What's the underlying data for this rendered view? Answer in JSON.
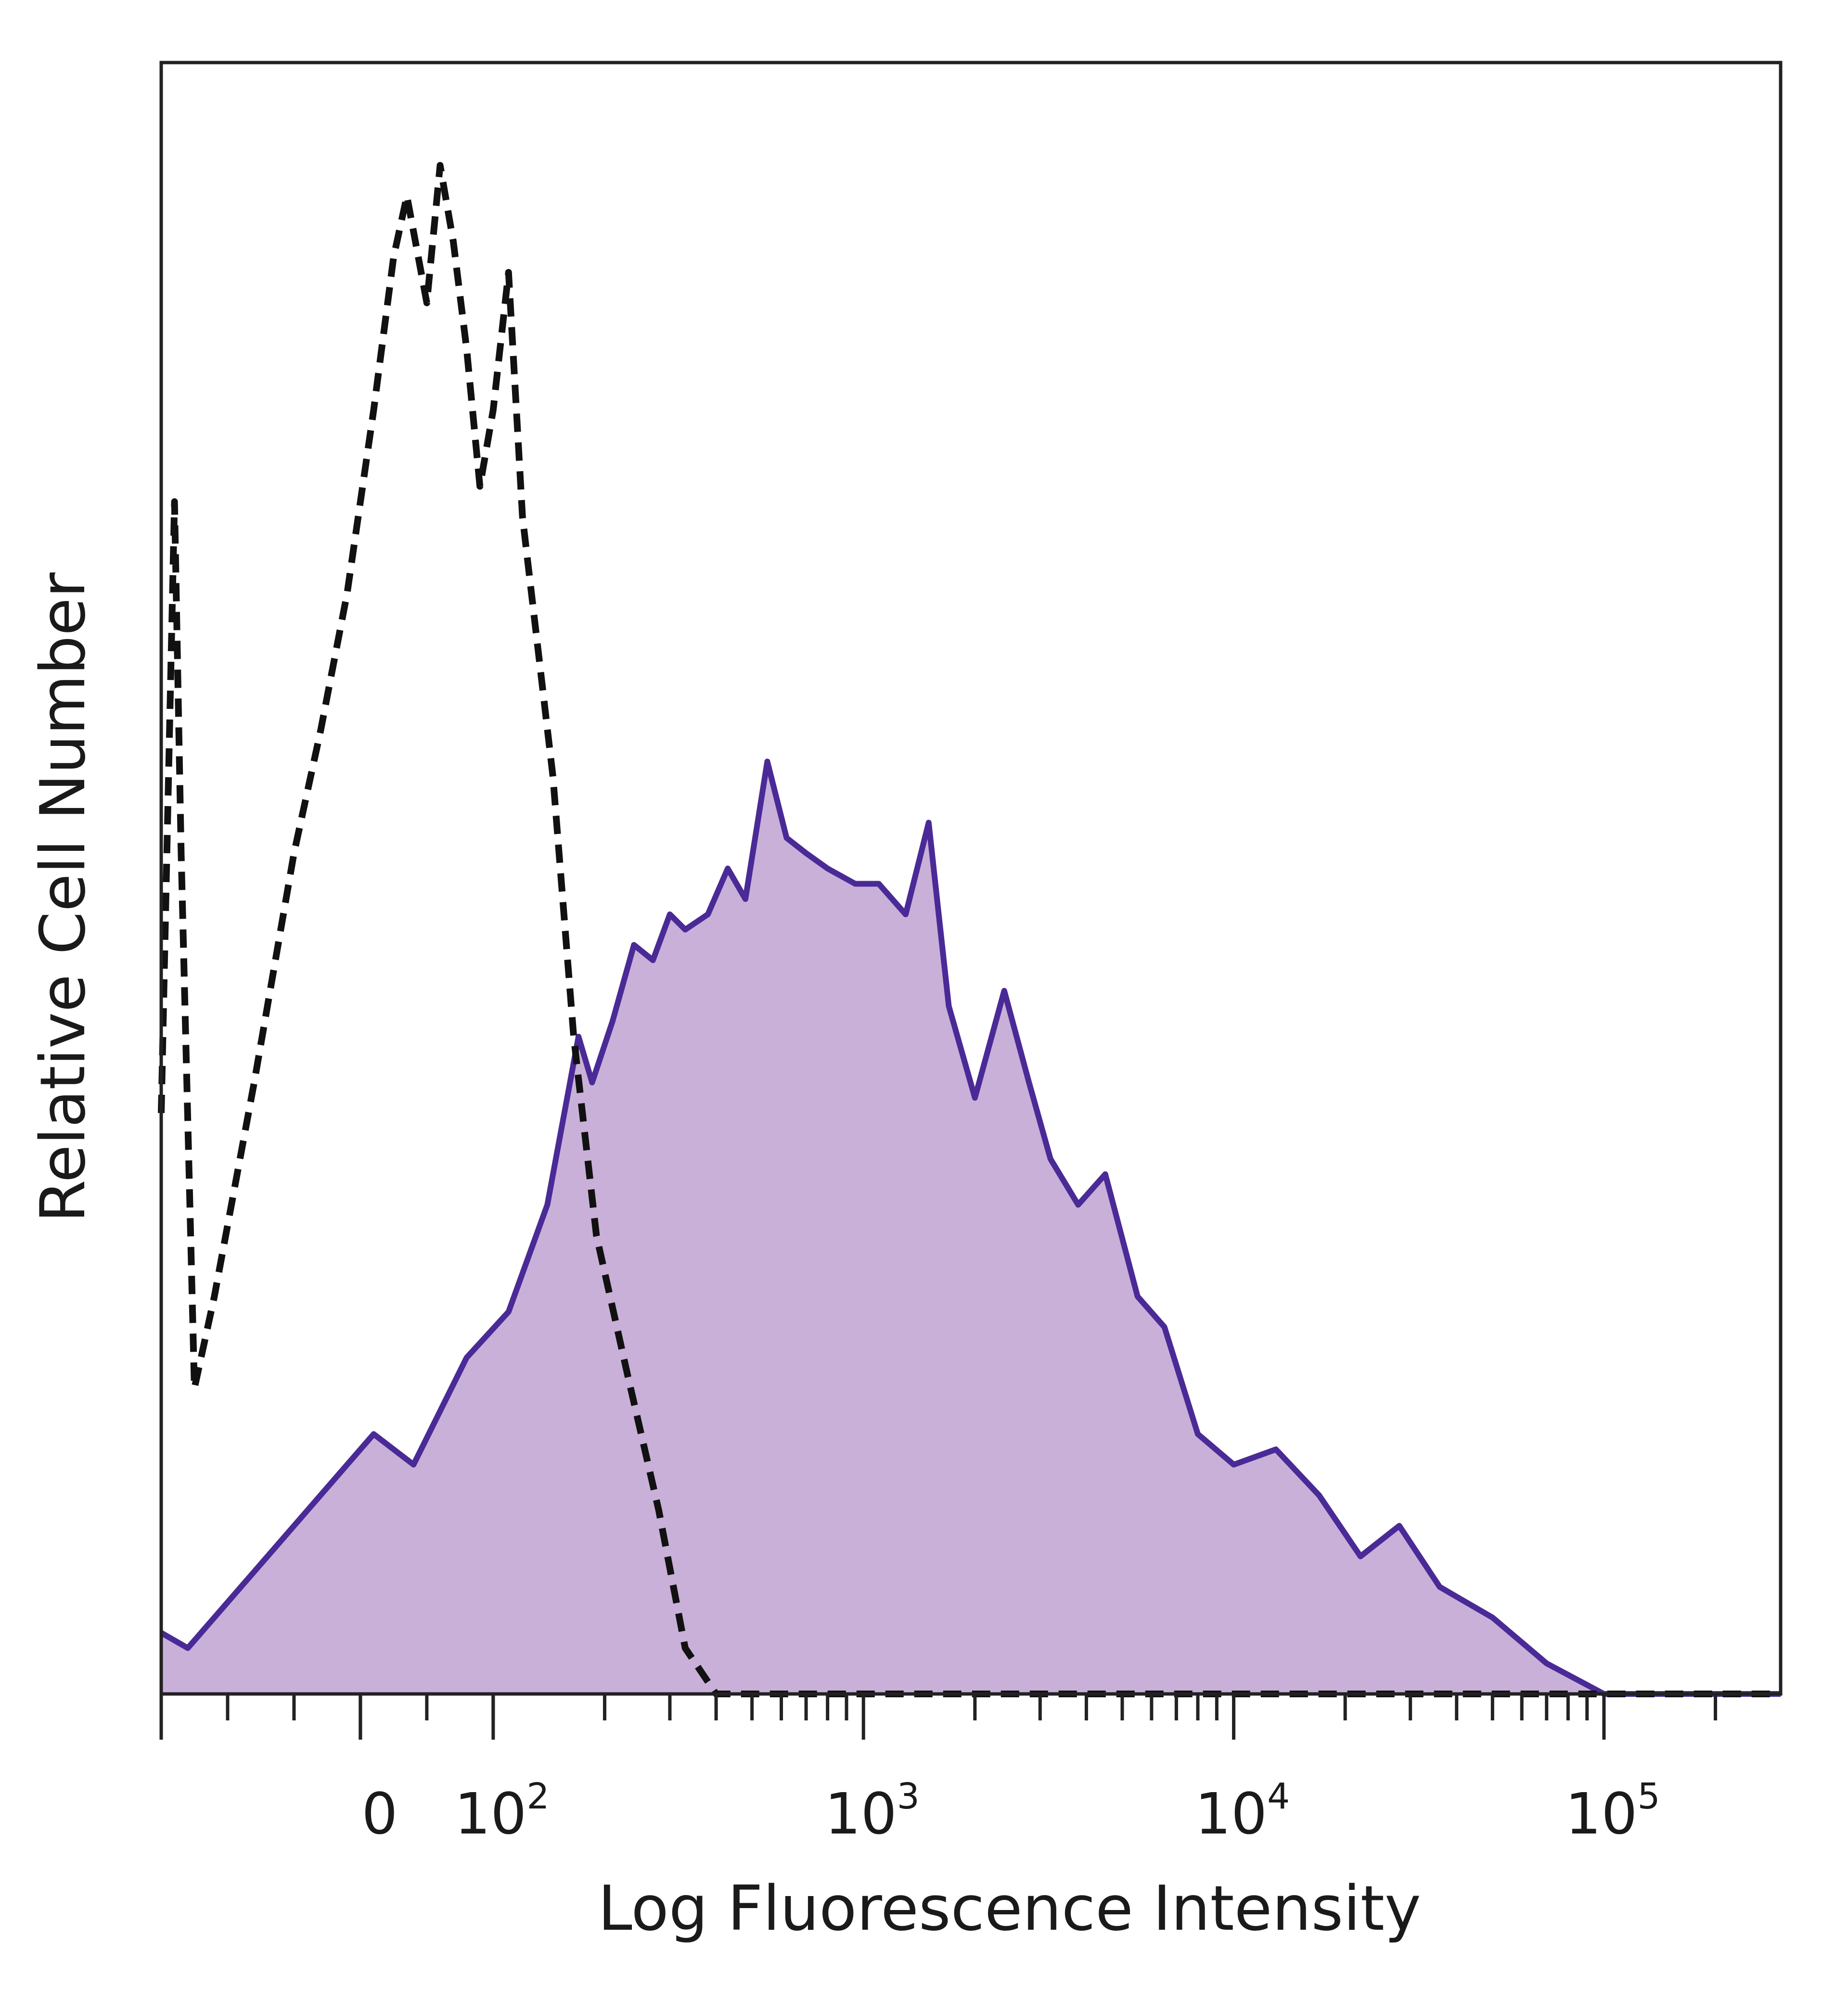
{
  "chart_data": {
    "type": "area",
    "title": "",
    "xlabel": "Log Fluorescence Intensity",
    "ylabel": "Relative Cell Number",
    "x_scale": "biexponential (log above 10^2)",
    "x_range": [
      -150,
      300000
    ],
    "y_range": [
      0,
      1
    ],
    "grid": false,
    "legend": "none",
    "x_ticks": [
      {
        "base": "0",
        "exp": "",
        "value": 0
      },
      {
        "base": "10",
        "exp": "2",
        "value": 100
      },
      {
        "base": "10",
        "exp": "3",
        "value": 1000
      },
      {
        "base": "10",
        "exp": "4",
        "value": 10000
      },
      {
        "base": "10",
        "exp": "5",
        "value": 100000
      }
    ],
    "series": [
      {
        "style": "dashed",
        "color": "#111111",
        "fill": "none",
        "points": [
          [
            -150,
            0.38
          ],
          [
            -140,
            0.78
          ],
          [
            -135,
            0.55
          ],
          [
            -125,
            0.2
          ],
          [
            -110,
            0.26
          ],
          [
            -80,
            0.4
          ],
          [
            -50,
            0.55
          ],
          [
            -30,
            0.63
          ],
          [
            -10,
            0.72
          ],
          [
            10,
            0.84
          ],
          [
            25,
            0.94
          ],
          [
            35,
            0.98
          ],
          [
            50,
            0.91
          ],
          [
            60,
            1.0
          ],
          [
            70,
            0.95
          ],
          [
            80,
            0.88
          ],
          [
            90,
            0.79
          ],
          [
            100,
            0.84
          ],
          [
            110,
            0.93
          ],
          [
            120,
            0.77
          ],
          [
            145,
            0.6
          ],
          [
            165,
            0.43
          ],
          [
            190,
            0.3
          ],
          [
            230,
            0.21
          ],
          [
            280,
            0.12
          ],
          [
            330,
            0.03
          ],
          [
            400,
            0.0
          ],
          [
            1000,
            0.0
          ],
          [
            300000,
            0.0
          ]
        ]
      },
      {
        "style": "solid",
        "color": "#4a2a96",
        "fill": "#c8b0d8",
        "points": [
          [
            -150,
            0.04
          ],
          [
            -130,
            0.03
          ],
          [
            -100,
            0.06
          ],
          [
            -60,
            0.1
          ],
          [
            -20,
            0.14
          ],
          [
            10,
            0.17
          ],
          [
            40,
            0.15
          ],
          [
            80,
            0.22
          ],
          [
            110,
            0.25
          ],
          [
            140,
            0.32
          ],
          [
            170,
            0.43
          ],
          [
            185,
            0.4
          ],
          [
            210,
            0.44
          ],
          [
            240,
            0.49
          ],
          [
            270,
            0.48
          ],
          [
            300,
            0.51
          ],
          [
            330,
            0.5
          ],
          [
            380,
            0.51
          ],
          [
            430,
            0.54
          ],
          [
            480,
            0.52
          ],
          [
            550,
            0.61
          ],
          [
            620,
            0.56
          ],
          [
            700,
            0.55
          ],
          [
            800,
            0.54
          ],
          [
            950,
            0.53
          ],
          [
            1100,
            0.53
          ],
          [
            1300,
            0.51
          ],
          [
            1500,
            0.57
          ],
          [
            1700,
            0.45
          ],
          [
            2000,
            0.39
          ],
          [
            2400,
            0.46
          ],
          [
            2800,
            0.4
          ],
          [
            3200,
            0.35
          ],
          [
            3800,
            0.32
          ],
          [
            4500,
            0.34
          ],
          [
            5500,
            0.26
          ],
          [
            6500,
            0.24
          ],
          [
            8000,
            0.17
          ],
          [
            10000,
            0.15
          ],
          [
            13000,
            0.16
          ],
          [
            17000,
            0.13
          ],
          [
            22000,
            0.09
          ],
          [
            28000,
            0.11
          ],
          [
            36000,
            0.07
          ],
          [
            50000,
            0.05
          ],
          [
            70000,
            0.02
          ],
          [
            100000,
            0.0
          ],
          [
            300000,
            0.0
          ]
        ]
      }
    ]
  }
}
